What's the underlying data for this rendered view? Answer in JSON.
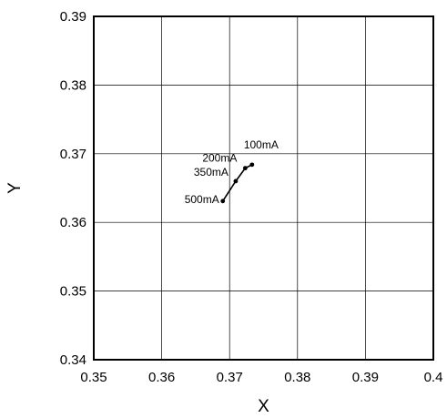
{
  "chart_data": {
    "type": "line",
    "title": "",
    "xlabel": "X",
    "ylabel": "Y",
    "xlim": [
      0.35,
      0.4
    ],
    "ylim": [
      0.34,
      0.39
    ],
    "x_ticks": [
      "0.35",
      "0.36",
      "0.37",
      "0.38",
      "0.39",
      "0.4"
    ],
    "y_ticks": [
      "0.34",
      "0.35",
      "0.36",
      "0.37",
      "0.38",
      "0.39"
    ],
    "grid": true,
    "legend": "none",
    "series": [
      {
        "points": [
          {
            "x": 0.3733,
            "y": 0.3684,
            "label": "100mA"
          },
          {
            "x": 0.3723,
            "y": 0.3679,
            "label": "200mA"
          },
          {
            "x": 0.3709,
            "y": 0.366,
            "label": "350mA"
          },
          {
            "x": 0.369,
            "y": 0.3631,
            "label": "500mA"
          }
        ]
      }
    ]
  }
}
